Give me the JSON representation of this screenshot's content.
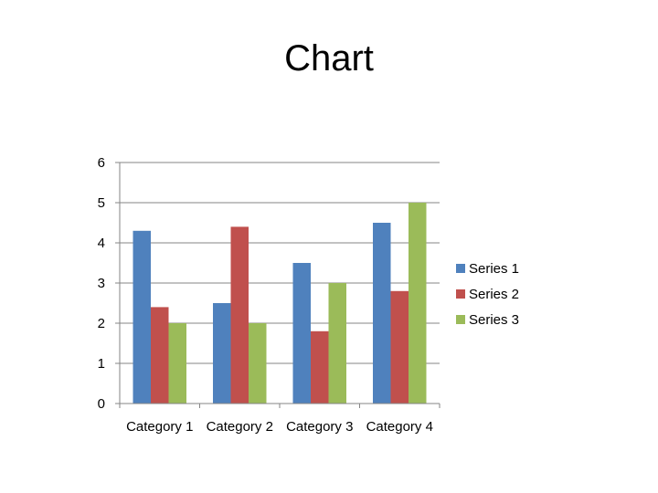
{
  "slide": {
    "title": "Chart"
  },
  "chart_data": {
    "type": "bar",
    "title": "",
    "xlabel": "",
    "ylabel": "",
    "categories": [
      "Category 1",
      "Category 2",
      "Category 3",
      "Category 4"
    ],
    "series": [
      {
        "name": "Series 1",
        "values": [
          4.3,
          2.5,
          3.5,
          4.5
        ],
        "color": "#4F81BD"
      },
      {
        "name": "Series 2",
        "values": [
          2.4,
          4.4,
          1.8,
          2.8
        ],
        "color": "#C0504D"
      },
      {
        "name": "Series 3",
        "values": [
          2,
          2,
          3,
          5
        ],
        "color": "#9BBB59"
      }
    ],
    "ylim": [
      0,
      6
    ],
    "yticks": [
      "0",
      "1",
      "2",
      "3",
      "4",
      "5",
      "6"
    ],
    "grid": true,
    "legend_position": "right"
  }
}
